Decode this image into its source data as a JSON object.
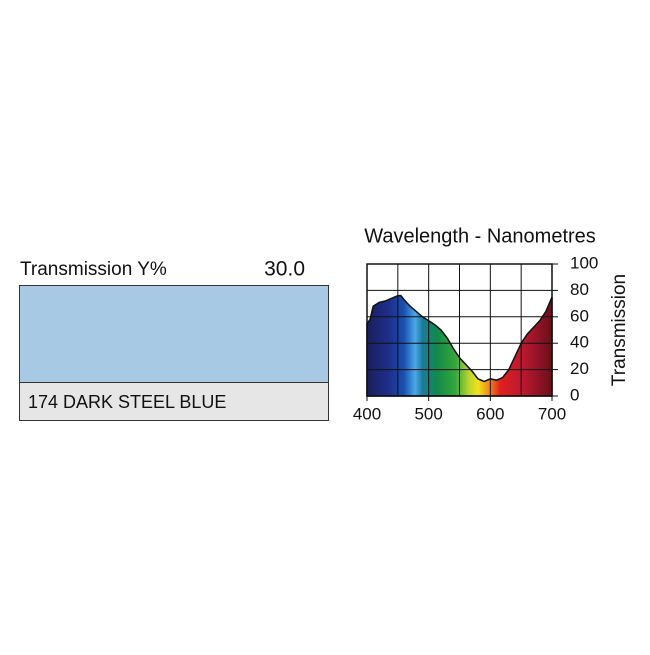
{
  "swatch": {
    "transmission_label": "Transmission Y%",
    "transmission_value": "30.0",
    "name": "174 DARK STEEL BLUE",
    "color": "#a8c9e3"
  },
  "chart_data": {
    "type": "area",
    "title": "Wavelength - Nanometres",
    "y_label": "Transmission",
    "x": [
      400,
      405,
      410,
      420,
      430,
      440,
      450,
      455,
      460,
      470,
      480,
      490,
      500,
      510,
      520,
      530,
      540,
      550,
      560,
      570,
      580,
      590,
      600,
      610,
      620,
      630,
      640,
      650,
      660,
      670,
      680,
      690,
      700
    ],
    "values": [
      55,
      58,
      68,
      71,
      72,
      74,
      76,
      76,
      73,
      68,
      64,
      60,
      57,
      54,
      50,
      44,
      36,
      29,
      24,
      19,
      13,
      11,
      13,
      12,
      14,
      20,
      30,
      40,
      47,
      52,
      57,
      64,
      75
    ],
    "xlim": [
      400,
      700
    ],
    "xticks": [
      400,
      500,
      600,
      700
    ],
    "x_minor_gridlines": [
      450,
      550,
      650
    ],
    "ylim": [
      0,
      100
    ],
    "yticks": [
      0,
      20,
      40,
      60,
      80,
      100
    ],
    "grid": true
  }
}
